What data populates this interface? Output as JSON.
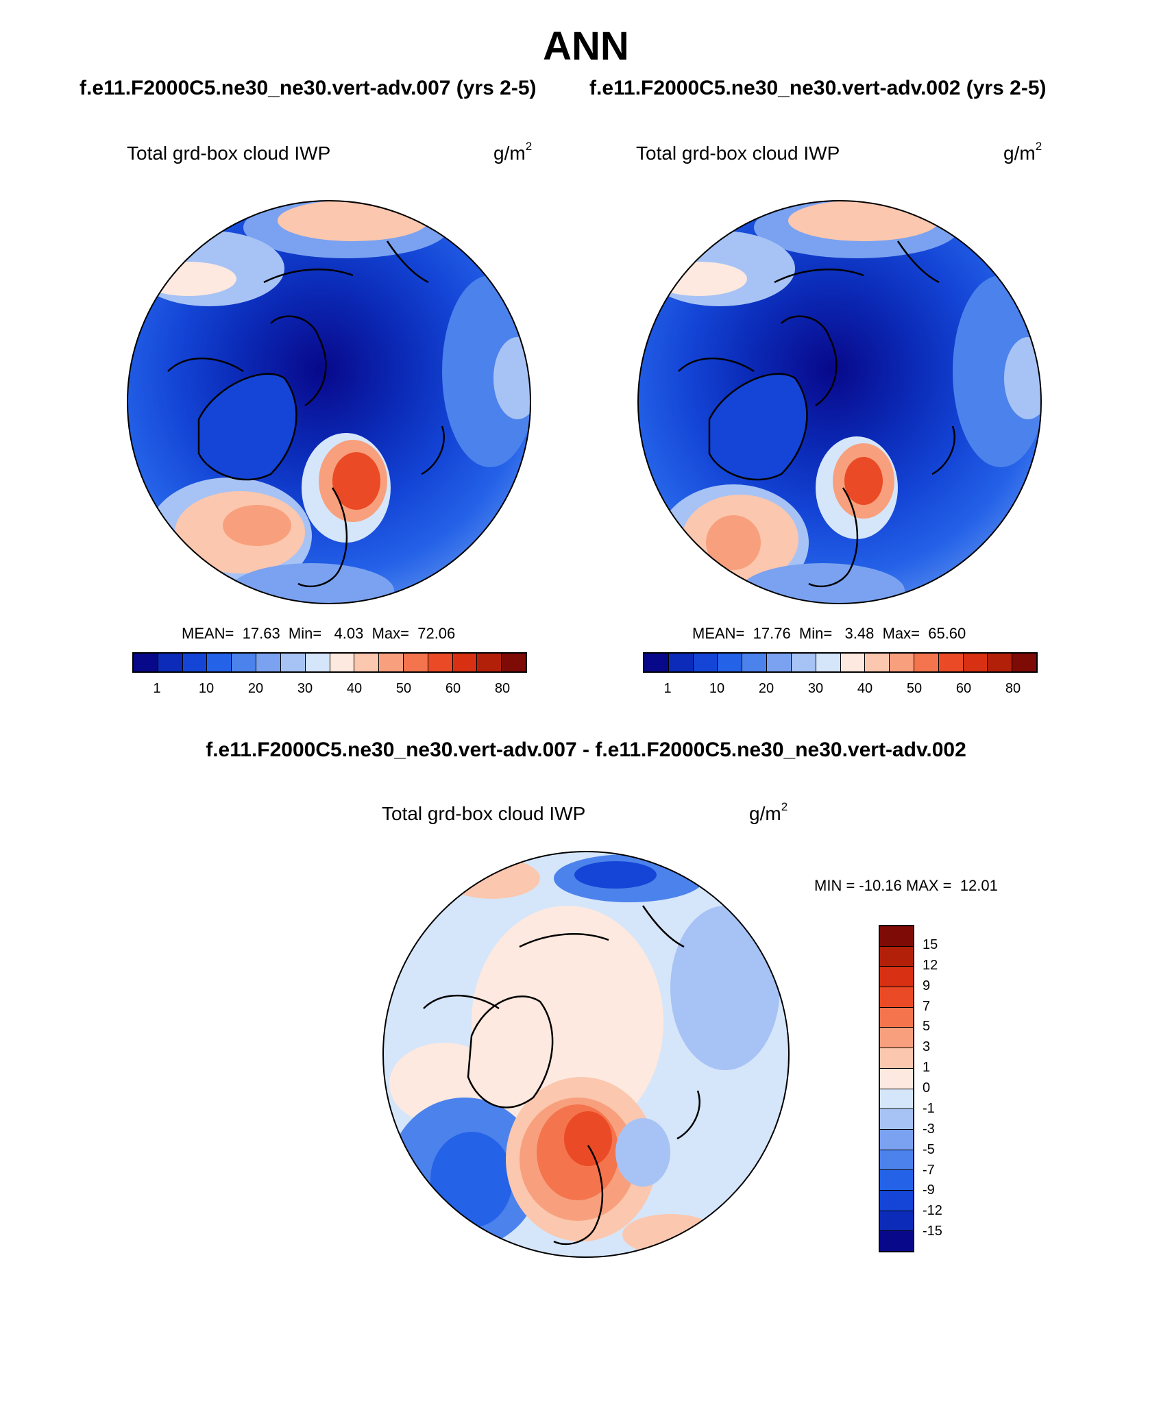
{
  "header": {
    "title": "ANN",
    "left_case": "f.e11.F2000C5.ne30_ne30.vert-adv.007 (yrs 2-5)",
    "right_case": "f.e11.F2000C5.ne30_ne30.vert-adv.002 (yrs 2-5)",
    "diff_title": "f.e11.F2000C5.ne30_ne30.vert-adv.007 - f.e11.F2000C5.ne30_ne30.vert-adv.002"
  },
  "panels": [
    {
      "field": "Total grd-box cloud IWP",
      "units_base": "g/m",
      "units_exp": "2",
      "stats": "MEAN=  17.63  Min=   4.03  Max=  72.06"
    },
    {
      "field": "Total grd-box cloud IWP",
      "units_base": "g/m",
      "units_exp": "2",
      "stats": "MEAN=  17.76  Min=   3.48  Max=  65.60"
    },
    {
      "field": "Total grd-box cloud IWP",
      "units_base": "g/m",
      "units_exp": "2",
      "stats": "MIN = -10.16 MAX =  12.01"
    }
  ],
  "colorbar_abs": {
    "labels": [
      "1",
      "10",
      "20",
      "30",
      "40",
      "50",
      "60",
      "80"
    ],
    "colors": [
      "#08088a",
      "#0b2bb8",
      "#1445d6",
      "#2462e8",
      "#4c82ec",
      "#7aa2f0",
      "#a7c3f5",
      "#d5e6fa",
      "#fde9df",
      "#fbc7ae",
      "#f8a07d",
      "#f4744d",
      "#ea4a25",
      "#d83013",
      "#b3200a",
      "#7e0b06"
    ]
  },
  "colorbar_diff": {
    "labels": [
      "15",
      "12",
      "9",
      "7",
      "5",
      "3",
      "1",
      "0",
      "-1",
      "-3",
      "-5",
      "-7",
      "-9",
      "-12",
      "-15"
    ],
    "colors": [
      "#7e0b06",
      "#b3200a",
      "#d83013",
      "#ea4a25",
      "#f4744d",
      "#f8a07d",
      "#fbc7ae",
      "#fde9df",
      "#d5e6fa",
      "#a7c3f5",
      "#7aa2f0",
      "#4c82ec",
      "#2462e8",
      "#1445d6",
      "#0b2bb8",
      "#08088a"
    ]
  }
}
